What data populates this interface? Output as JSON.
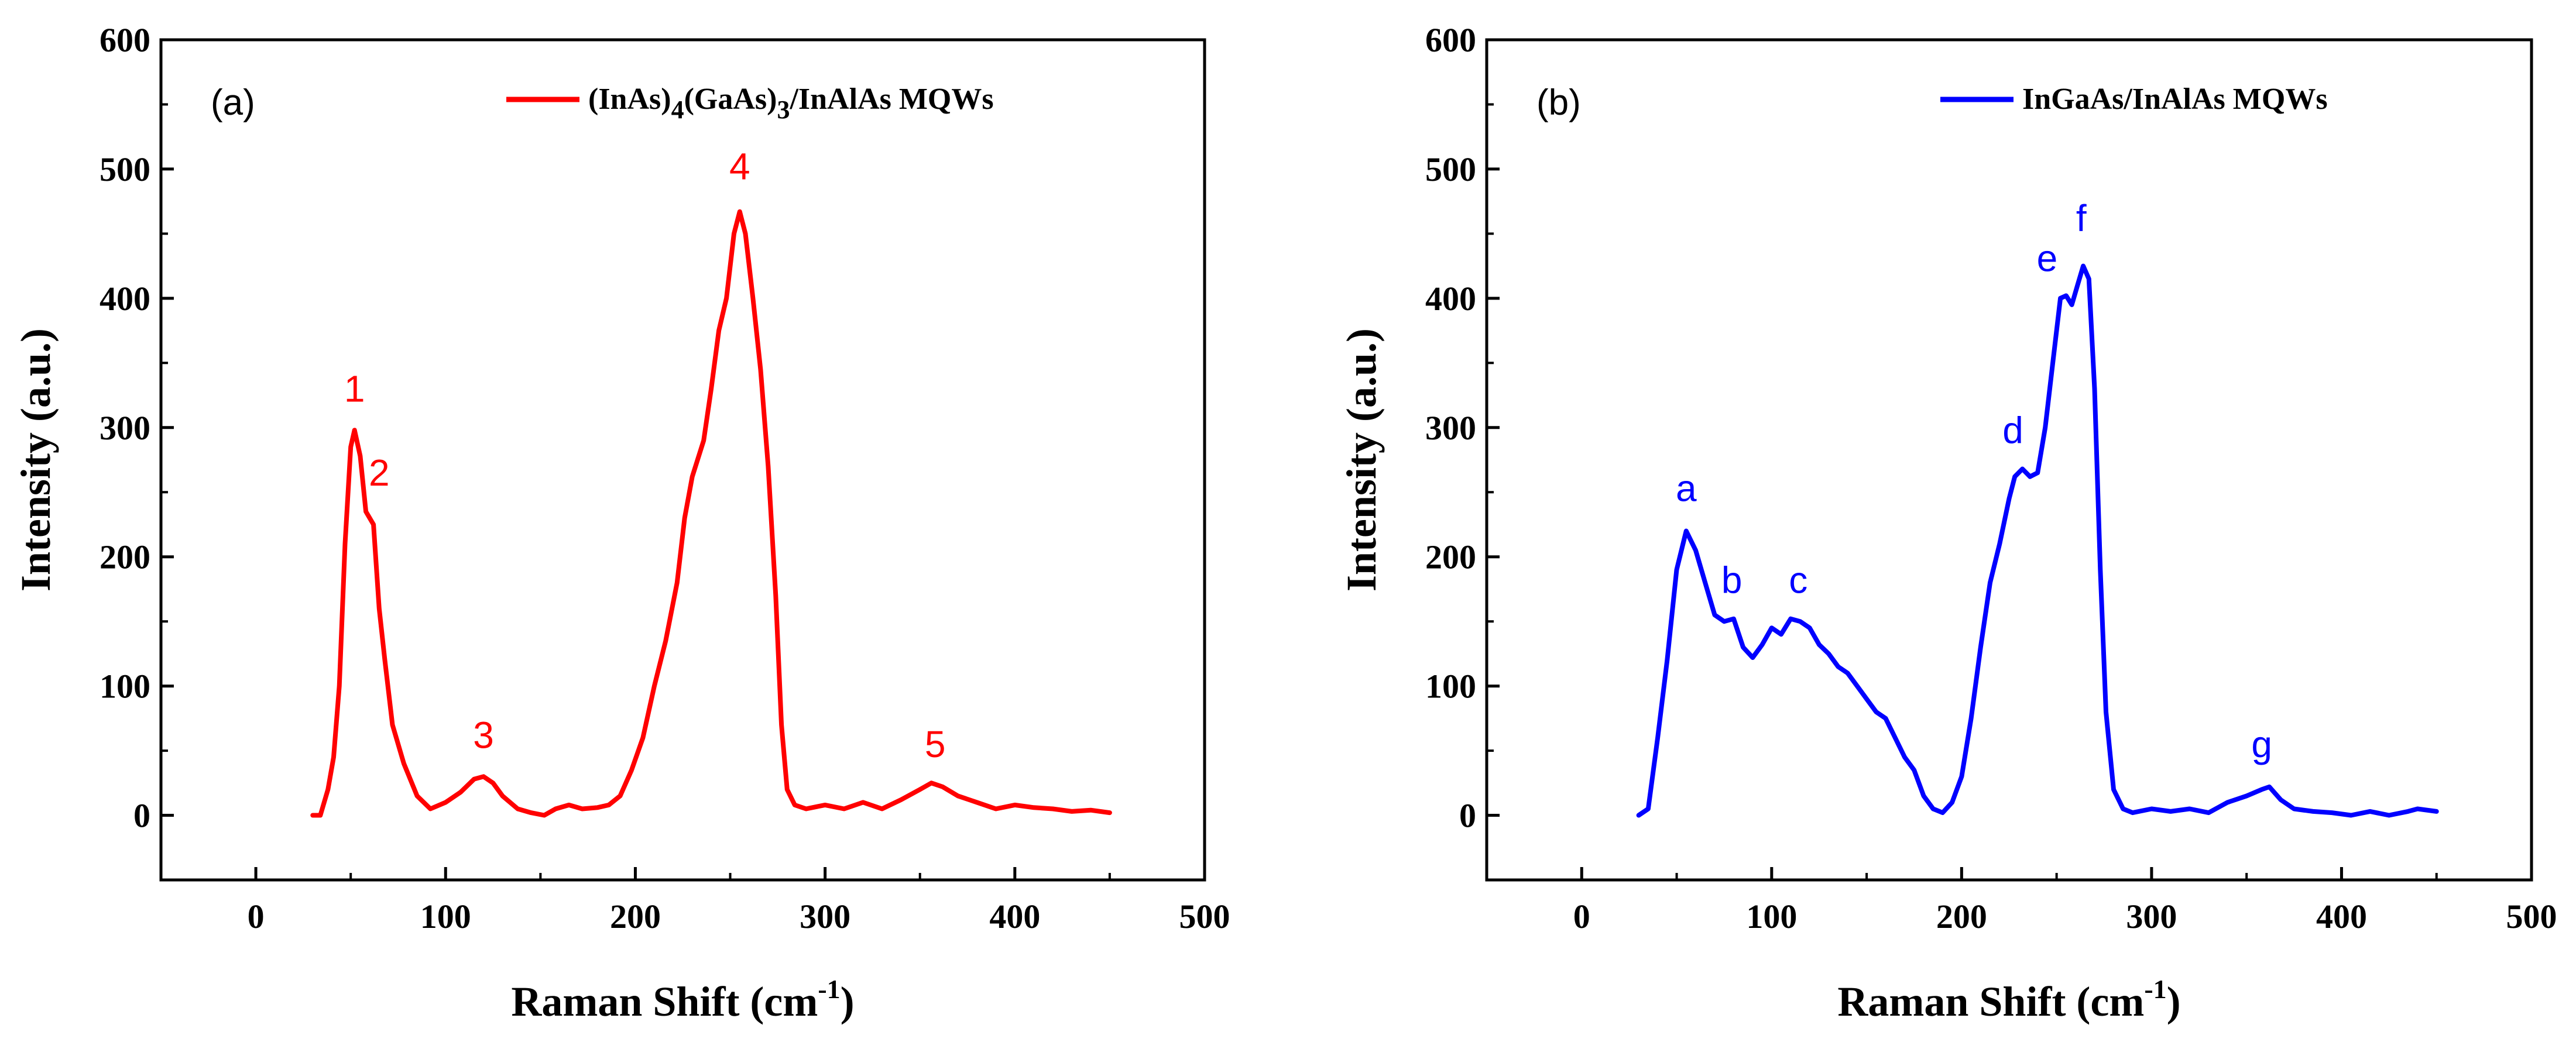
{
  "chart_data": [
    {
      "type": "line",
      "panel_label": "(a)",
      "xlabel": "Raman Shift (cm",
      "xlabel_sup": "-1",
      "xlabel_end": ")",
      "ylabel": "Intensity (a.u.)",
      "xlim": [
        -50,
        500
      ],
      "ylim": [
        -50,
        600
      ],
      "xticks": [
        0,
        100,
        200,
        300,
        400,
        500
      ],
      "yticks": [
        0,
        100,
        200,
        300,
        400,
        500,
        600
      ],
      "legend": {
        "position": "top-right",
        "parts": [
          {
            "text": "(InAs)",
            "sub": false
          },
          {
            "text": "4",
            "sub": true
          },
          {
            "text": "(GaAs)",
            "sub": false
          },
          {
            "text": "3",
            "sub": true
          },
          {
            "text": "/InAlAs MQWs",
            "sub": false
          }
        ]
      },
      "color": "#ff0000",
      "series": [
        {
          "name": "(InAs)4(GaAs)3/InAlAs MQWs",
          "points": [
            [
              30,
              0
            ],
            [
              34,
              0
            ],
            [
              38,
              20
            ],
            [
              41,
              45
            ],
            [
              44,
              100
            ],
            [
              47,
              210
            ],
            [
              50,
              285
            ],
            [
              52,
              298
            ],
            [
              55,
              278
            ],
            [
              58,
              235
            ],
            [
              62,
              225
            ],
            [
              65,
              160
            ],
            [
              68,
              120
            ],
            [
              72,
              70
            ],
            [
              78,
              40
            ],
            [
              85,
              15
            ],
            [
              92,
              5
            ],
            [
              100,
              10
            ],
            [
              108,
              18
            ],
            [
              115,
              28
            ],
            [
              120,
              30
            ],
            [
              125,
              25
            ],
            [
              130,
              15
            ],
            [
              138,
              5
            ],
            [
              145,
              2
            ],
            [
              152,
              0
            ],
            [
              158,
              5
            ],
            [
              165,
              8
            ],
            [
              172,
              5
            ],
            [
              180,
              6
            ],
            [
              186,
              8
            ],
            [
              192,
              15
            ],
            [
              198,
              35
            ],
            [
              204,
              60
            ],
            [
              210,
              100
            ],
            [
              216,
              135
            ],
            [
              222,
              180
            ],
            [
              226,
              230
            ],
            [
              230,
              262
            ],
            [
              236,
              290
            ],
            [
              240,
              330
            ],
            [
              244,
              375
            ],
            [
              248,
              400
            ],
            [
              252,
              450
            ],
            [
              255,
              467
            ],
            [
              258,
              450
            ],
            [
              262,
              400
            ],
            [
              266,
              345
            ],
            [
              270,
              270
            ],
            [
              274,
              170
            ],
            [
              277,
              70
            ],
            [
              280,
              20
            ],
            [
              284,
              8
            ],
            [
              290,
              5
            ],
            [
              300,
              8
            ],
            [
              310,
              5
            ],
            [
              320,
              10
            ],
            [
              330,
              5
            ],
            [
              340,
              12
            ],
            [
              350,
              20
            ],
            [
              356,
              25
            ],
            [
              362,
              22
            ],
            [
              370,
              15
            ],
            [
              380,
              10
            ],
            [
              390,
              5
            ],
            [
              400,
              8
            ],
            [
              410,
              6
            ],
            [
              420,
              5
            ],
            [
              430,
              3
            ],
            [
              440,
              4
            ],
            [
              450,
              2
            ]
          ]
        }
      ],
      "annotations": [
        {
          "label": "1",
          "x": 52,
          "y": 320
        },
        {
          "label": "2",
          "x": 65,
          "y": 255
        },
        {
          "label": "3",
          "x": 120,
          "y": 52
        },
        {
          "label": "4",
          "x": 255,
          "y": 492
        },
        {
          "label": "5",
          "x": 358,
          "y": 45
        }
      ]
    },
    {
      "type": "line",
      "panel_label": "(b)",
      "xlabel": "Raman Shift (cm",
      "xlabel_sup": "-1",
      "xlabel_end": ")",
      "ylabel": "Intensity (a.u.)",
      "xlim": [
        -50,
        500
      ],
      "ylim": [
        -50,
        600
      ],
      "xticks": [
        0,
        100,
        200,
        300,
        400,
        500
      ],
      "yticks": [
        0,
        100,
        200,
        300,
        400,
        500,
        600
      ],
      "legend": {
        "position": "top-right",
        "parts": [
          {
            "text": "InGaAs/InAlAs MQWs",
            "sub": false
          }
        ]
      },
      "color": "#0000ff",
      "series": [
        {
          "name": "InGaAs/InAlAs MQWs",
          "points": [
            [
              30,
              0
            ],
            [
              35,
              5
            ],
            [
              40,
              60
            ],
            [
              45,
              120
            ],
            [
              50,
              190
            ],
            [
              55,
              220
            ],
            [
              60,
              205
            ],
            [
              65,
              180
            ],
            [
              70,
              155
            ],
            [
              75,
              150
            ],
            [
              80,
              152
            ],
            [
              85,
              130
            ],
            [
              90,
              122
            ],
            [
              95,
              132
            ],
            [
              100,
              145
            ],
            [
              105,
              140
            ],
            [
              110,
              152
            ],
            [
              115,
              150
            ],
            [
              120,
              145
            ],
            [
              125,
              132
            ],
            [
              130,
              125
            ],
            [
              135,
              115
            ],
            [
              140,
              110
            ],
            [
              145,
              100
            ],
            [
              150,
              90
            ],
            [
              155,
              80
            ],
            [
              160,
              75
            ],
            [
              165,
              60
            ],
            [
              170,
              45
            ],
            [
              175,
              35
            ],
            [
              180,
              15
            ],
            [
              185,
              5
            ],
            [
              190,
              2
            ],
            [
              195,
              10
            ],
            [
              200,
              30
            ],
            [
              205,
              75
            ],
            [
              210,
              130
            ],
            [
              215,
              180
            ],
            [
              220,
              210
            ],
            [
              225,
              245
            ],
            [
              228,
              262
            ],
            [
              232,
              268
            ],
            [
              236,
              262
            ],
            [
              240,
              265
            ],
            [
              244,
              300
            ],
            [
              248,
              350
            ],
            [
              252,
              400
            ],
            [
              255,
              402
            ],
            [
              258,
              395
            ],
            [
              261,
              410
            ],
            [
              264,
              425
            ],
            [
              267,
              415
            ],
            [
              270,
              330
            ],
            [
              273,
              190
            ],
            [
              276,
              80
            ],
            [
              280,
              20
            ],
            [
              285,
              5
            ],
            [
              290,
              2
            ],
            [
              300,
              5
            ],
            [
              310,
              3
            ],
            [
              320,
              5
            ],
            [
              330,
              2
            ],
            [
              340,
              10
            ],
            [
              350,
              15
            ],
            [
              358,
              20
            ],
            [
              362,
              22
            ],
            [
              368,
              12
            ],
            [
              375,
              5
            ],
            [
              385,
              3
            ],
            [
              395,
              2
            ],
            [
              405,
              0
            ],
            [
              415,
              3
            ],
            [
              425,
              0
            ],
            [
              435,
              3
            ],
            [
              440,
              5
            ],
            [
              450,
              3
            ]
          ]
        }
      ],
      "annotations": [
        {
          "label": "a",
          "x": 55,
          "y": 243
        },
        {
          "label": "b",
          "x": 79,
          "y": 172
        },
        {
          "label": "c",
          "x": 114,
          "y": 172
        },
        {
          "label": "d",
          "x": 227,
          "y": 288
        },
        {
          "label": "e",
          "x": 245,
          "y": 421
        },
        {
          "label": "f",
          "x": 263,
          "y": 452
        },
        {
          "label": "g",
          "x": 358,
          "y": 45
        }
      ]
    }
  ]
}
